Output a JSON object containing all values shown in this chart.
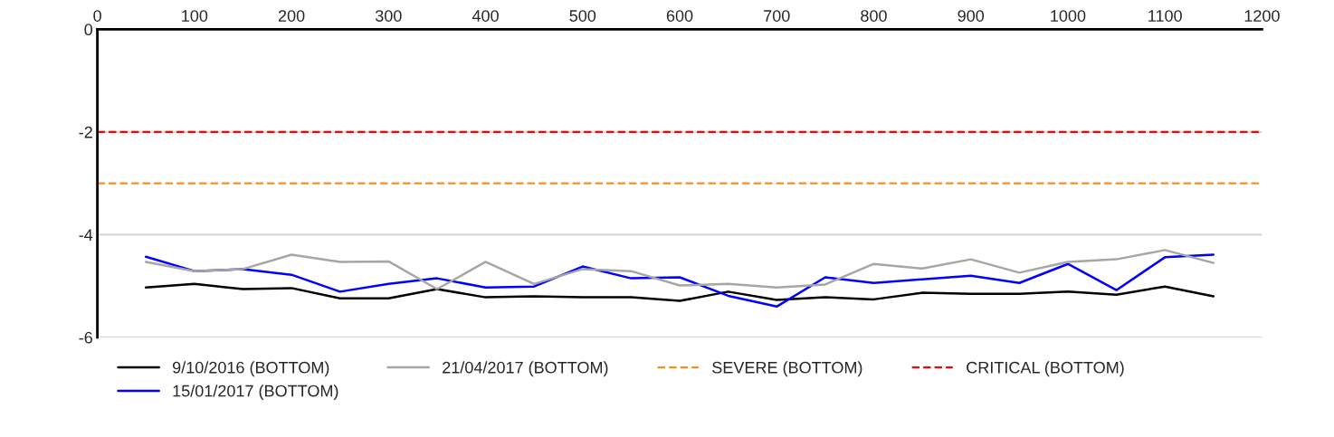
{
  "chart_data": {
    "type": "line",
    "x": [
      50,
      100,
      150,
      200,
      250,
      300,
      350,
      400,
      450,
      500,
      550,
      600,
      650,
      700,
      750,
      800,
      850,
      900,
      950,
      1000,
      1050,
      1100,
      1150
    ],
    "series": [
      {
        "name": "9/10/2016 (BOTTOM)",
        "color": "#000000",
        "values": [
          -5.03,
          -4.96,
          -5.06,
          -5.04,
          -5.24,
          -5.24,
          -5.06,
          -5.22,
          -5.2,
          -5.22,
          -5.22,
          -5.29,
          -5.11,
          -5.27,
          -5.22,
          -5.26,
          -5.13,
          -5.15,
          -5.15,
          -5.11,
          -5.17,
          -5.01,
          -5.2
        ]
      },
      {
        "name": "15/01/2017 (BOTTOM)",
        "color": "#0000ff",
        "values": [
          -4.43,
          -4.71,
          -4.67,
          -4.78,
          -5.11,
          -4.96,
          -4.85,
          -5.03,
          -5.01,
          -4.62,
          -4.85,
          -4.83,
          -5.19,
          -5.4,
          -4.83,
          -4.94,
          -4.87,
          -4.8,
          -4.94,
          -4.57,
          -5.08,
          -4.44,
          -4.39
        ]
      },
      {
        "name": "21/04/2017 (BOTTOM)",
        "color": "#a6a6a6",
        "values": [
          -4.53,
          -4.71,
          -4.67,
          -4.39,
          -4.53,
          -4.52,
          -5.06,
          -4.53,
          -4.96,
          -4.67,
          -4.71,
          -4.99,
          -4.96,
          -5.03,
          -4.97,
          -4.57,
          -4.66,
          -4.48,
          -4.74,
          -4.53,
          -4.48,
          -4.3,
          -4.55
        ]
      }
    ],
    "ref_lines": [
      {
        "axis": "y",
        "value": -3,
        "label": "SEVERE (BOTTOM)",
        "color": "#ff8c1a",
        "line_style": "dashed"
      },
      {
        "axis": "y",
        "value": -2,
        "label": "CRITICAL (BOTTOM)",
        "color": "#ff0000",
        "line_style": "dashed"
      }
    ],
    "xlim": [
      0,
      1200
    ],
    "xticks": [
      0,
      100,
      200,
      300,
      400,
      500,
      600,
      700,
      800,
      900,
      1000,
      1100,
      1200
    ],
    "ylim": [
      -6,
      0
    ],
    "yticks": [
      -6,
      -4,
      -2,
      0
    ],
    "grid": "y",
    "legend": "bottom",
    "marker": "none",
    "line_style": "solid"
  }
}
